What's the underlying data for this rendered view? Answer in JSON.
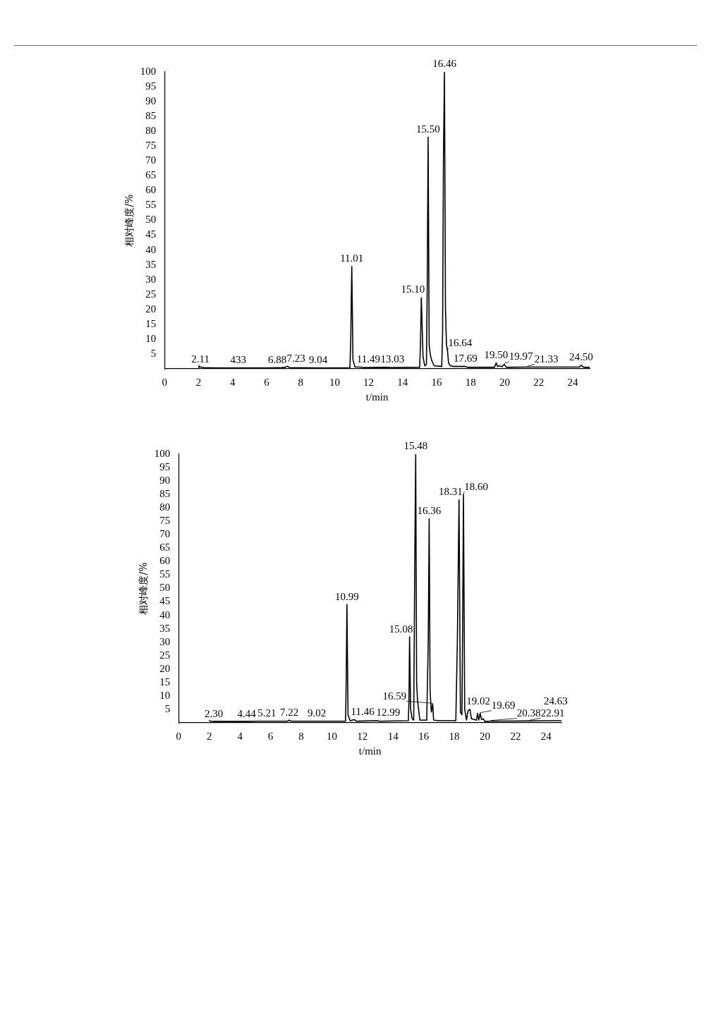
{
  "chart_data": [
    {
      "type": "line",
      "xlabel": "t/min",
      "ylabel": "相对峰度/%",
      "xlim": [
        0,
        25
      ],
      "ylim": [
        0,
        100
      ],
      "xticks": [
        0,
        2,
        4,
        6,
        8,
        10,
        12,
        14,
        16,
        18,
        20,
        22,
        24
      ],
      "yticks": [
        5,
        10,
        15,
        20,
        25,
        30,
        35,
        40,
        45,
        50,
        55,
        60,
        65,
        70,
        75,
        80,
        85,
        90,
        95,
        100
      ],
      "grid": false,
      "legend": false,
      "marker": "none",
      "line_style": "solid",
      "series": [
        {
          "color": "#000000",
          "x": [
            2,
            2.02,
            2.11,
            2.3,
            3,
            4.33,
            6,
            6.88,
            7.1,
            7.23,
            7.35,
            9.04,
            10.9,
            10.95,
            11.01,
            11.08,
            11.2,
            11.49,
            11.7,
            13.03,
            13.3,
            15.0,
            15.05,
            15.1,
            15.2,
            15.3,
            15.4,
            15.45,
            15.5,
            15.56,
            15.62,
            15.7,
            15.85,
            16.3,
            16.35,
            16.4,
            16.46,
            16.52,
            16.58,
            16.64,
            16.7,
            16.8,
            17.0,
            17.69,
            17.8,
            19.4,
            19.5,
            19.58,
            19.7,
            19.85,
            19.97,
            20.1,
            21.33,
            24.4,
            24.5,
            24.65,
            25
          ],
          "values": [
            0,
            1,
            0.6,
            0.4,
            0.3,
            0.3,
            0.3,
            0.4,
            0.5,
            0.9,
            0.4,
            0.3,
            0.3,
            10,
            34.5,
            3,
            0.6,
            0.6,
            0.4,
            0.5,
            0.4,
            0.5,
            8,
            24,
            4,
            1,
            1.5,
            30,
            78,
            8,
            5,
            3,
            1,
            0.8,
            12,
            70,
            100,
            20,
            8,
            6,
            2,
            1,
            0.8,
            0.8,
            0.5,
            0.5,
            2,
            0.8,
            1,
            0.7,
            1.5,
            0.5,
            0.6,
            0.6,
            1.2,
            0.5,
            0.5
          ]
        }
      ],
      "annotations": [
        {
          "text": "2.11",
          "x": 2.11,
          "y": 0.6
        },
        {
          "text": "433",
          "x": 4.33,
          "y": 0.3
        },
        {
          "text": "6.88",
          "x": 6.88,
          "y": 0.4
        },
        {
          "text": "7.23",
          "x": 7.23,
          "y": 0.9
        },
        {
          "text": "9.04",
          "x": 9.04,
          "y": 0.3
        },
        {
          "text": "11.01",
          "x": 11.01,
          "y": 34.5
        },
        {
          "text": "11.49",
          "x": 11.49,
          "y": 0.6
        },
        {
          "text": "13.03",
          "x": 13.03,
          "y": 0.5
        },
        {
          "text": "15.10",
          "x": 15.1,
          "y": 24
        },
        {
          "text": "15.50",
          "x": 15.5,
          "y": 78
        },
        {
          "text": "16.46",
          "x": 16.46,
          "y": 100
        },
        {
          "text": "16.64",
          "x": 16.64,
          "y": 6
        },
        {
          "text": "17.69",
          "x": 17.69,
          "y": 0.8
        },
        {
          "text": "19.50",
          "x": 19.5,
          "y": 2
        },
        {
          "text": "19.97",
          "x": 19.97,
          "y": 1.5
        },
        {
          "text": "21.33",
          "x": 21.33,
          "y": 0.6
        },
        {
          "text": "24.50",
          "x": 24.5,
          "y": 1.2
        }
      ]
    },
    {
      "type": "line",
      "xlabel": "t/min",
      "ylabel": "相对峰度/%",
      "xlim": [
        0,
        25
      ],
      "ylim": [
        0,
        100
      ],
      "xticks": [
        0,
        2,
        4,
        6,
        8,
        10,
        12,
        14,
        16,
        18,
        20,
        22,
        24
      ],
      "yticks": [
        5,
        10,
        15,
        20,
        25,
        30,
        35,
        40,
        45,
        50,
        55,
        60,
        65,
        70,
        75,
        80,
        85,
        90,
        95,
        100
      ],
      "grid": false,
      "legend": false,
      "marker": "none",
      "line_style": "solid",
      "series": [
        {
          "color": "#000000",
          "x": [
            2,
            2.05,
            2.3,
            4.44,
            5.21,
            7.1,
            7.22,
            7.35,
            9.02,
            10.9,
            10.94,
            10.99,
            11.06,
            11.2,
            11.46,
            11.6,
            12.99,
            13.1,
            15.0,
            15.04,
            15.08,
            15.15,
            15.25,
            15.35,
            15.42,
            15.48,
            15.54,
            15.6,
            15.65,
            15.75,
            16.2,
            16.3,
            16.36,
            16.42,
            16.5,
            16.59,
            16.65,
            17.0,
            18.1,
            18.2,
            18.31,
            18.4,
            18.5,
            18.55,
            18.6,
            18.68,
            18.8,
            18.9,
            19.02,
            19.12,
            19.45,
            19.52,
            19.6,
            19.69,
            19.78,
            19.9,
            20.0,
            20.38,
            22.91,
            24.63,
            25
          ],
          "values": [
            1,
            0.6,
            0.5,
            0.5,
            0.6,
            0.6,
            1,
            0.6,
            0.6,
            0.6,
            15,
            44,
            3,
            0.7,
            1.2,
            0.6,
            0.8,
            0.6,
            0.8,
            8,
            32,
            5,
            1.5,
            1,
            60,
            100,
            15,
            8.5,
            6,
            1,
            1,
            30,
            76,
            12,
            4,
            7,
            1,
            0.8,
            0.8,
            30,
            83,
            4,
            3,
            40,
            85,
            5,
            1,
            4.5,
            5,
            1.5,
            1,
            3.5,
            1,
            3.5,
            1.2,
            1.5,
            0.5,
            0.6,
            0.7,
            0.8,
            0.8
          ]
        }
      ],
      "annotations": [
        {
          "text": "2.30",
          "x": 2.3,
          "y": 0.5
        },
        {
          "text": "4.44",
          "x": 4.44,
          "y": 0.5
        },
        {
          "text": "5.21",
          "x": 5.21,
          "y": 0.6
        },
        {
          "text": "7.22",
          "x": 7.22,
          "y": 1
        },
        {
          "text": "9.02",
          "x": 9.02,
          "y": 0.6
        },
        {
          "text": "10.99",
          "x": 10.99,
          "y": 44
        },
        {
          "text": "11.46",
          "x": 11.46,
          "y": 1.2
        },
        {
          "text": "12.99",
          "x": 12.99,
          "y": 0.8
        },
        {
          "text": "15.08",
          "x": 15.08,
          "y": 32
        },
        {
          "text": "15.48",
          "x": 15.48,
          "y": 100
        },
        {
          "text": "16.36",
          "x": 16.36,
          "y": 76
        },
        {
          "text": "16.59",
          "x": 16.59,
          "y": 7
        },
        {
          "text": "18.31",
          "x": 18.31,
          "y": 83
        },
        {
          "text": "18.60",
          "x": 18.6,
          "y": 85
        },
        {
          "text": "19.02",
          "x": 19.02,
          "y": 5
        },
        {
          "text": "19.69",
          "x": 19.69,
          "y": 3.5
        },
        {
          "text": "20.38",
          "x": 20.38,
          "y": 0.6
        },
        {
          "text": "22.91",
          "x": 22.91,
          "y": 0.7
        },
        {
          "text": "24.63",
          "x": 24.63,
          "y": 0.8
        }
      ]
    }
  ]
}
